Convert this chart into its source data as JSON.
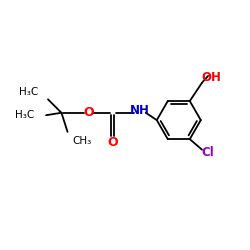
{
  "bg_color": "#ffffff",
  "bond_color": "#000000",
  "O_color": "#ff0000",
  "N_color": "#0000cc",
  "Cl_color": "#9900bb",
  "OH_color": "#ff0000",
  "text_color": "#000000",
  "figsize": [
    2.5,
    2.5
  ],
  "dpi": 100,
  "xlim": [
    0,
    10
  ],
  "ylim": [
    0,
    10
  ]
}
